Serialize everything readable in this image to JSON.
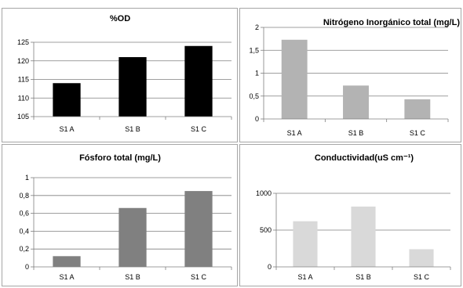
{
  "chart_data": [
    {
      "type": "bar",
      "title": "%OD",
      "categories": [
        "S1 A",
        "S1 B",
        "S1 C"
      ],
      "values": [
        114,
        121,
        124
      ],
      "ylim": [
        105,
        125
      ],
      "yticks": [
        105,
        110,
        115,
        120,
        125
      ],
      "ytick_labels": [
        "105",
        "110",
        "115",
        "120",
        "125"
      ],
      "color": "#000000",
      "grid": true
    },
    {
      "type": "bar",
      "title": "Nitrógeno Inorgánico total (mg/L)",
      "categories": [
        "S1 A",
        "S1 B",
        "S1 C"
      ],
      "values": [
        1.73,
        0.73,
        0.43
      ],
      "ylim": [
        0,
        2
      ],
      "yticks": [
        0,
        0.5,
        1,
        1.5,
        2
      ],
      "ytick_labels": [
        "0",
        "0,5",
        "1",
        "1,5",
        "2"
      ],
      "color": "#b3b3b3",
      "grid": true
    },
    {
      "type": "bar",
      "title": "Fósforo total (mg/L)",
      "categories": [
        "S1 A",
        "S1 B",
        "S1 C"
      ],
      "values": [
        0.12,
        0.66,
        0.85
      ],
      "ylim": [
        0,
        1
      ],
      "yticks": [
        0,
        0.2,
        0.4,
        0.6,
        0.8,
        1
      ],
      "ytick_labels": [
        "0",
        "0,2",
        "0,4",
        "0,6",
        "0,8",
        "1"
      ],
      "color": "#808080",
      "grid": true
    },
    {
      "type": "bar",
      "title": "Conductividad(uS cm⁻¹)",
      "categories": [
        "S1 A",
        "S1 B",
        "S1 C"
      ],
      "values": [
        620,
        820,
        240
      ],
      "ylim": [
        0,
        1000
      ],
      "yticks": [
        0,
        500,
        1000
      ],
      "ytick_labels": [
        "0",
        "500",
        "1000"
      ],
      "color": "#d9d9d9",
      "grid": true
    }
  ]
}
